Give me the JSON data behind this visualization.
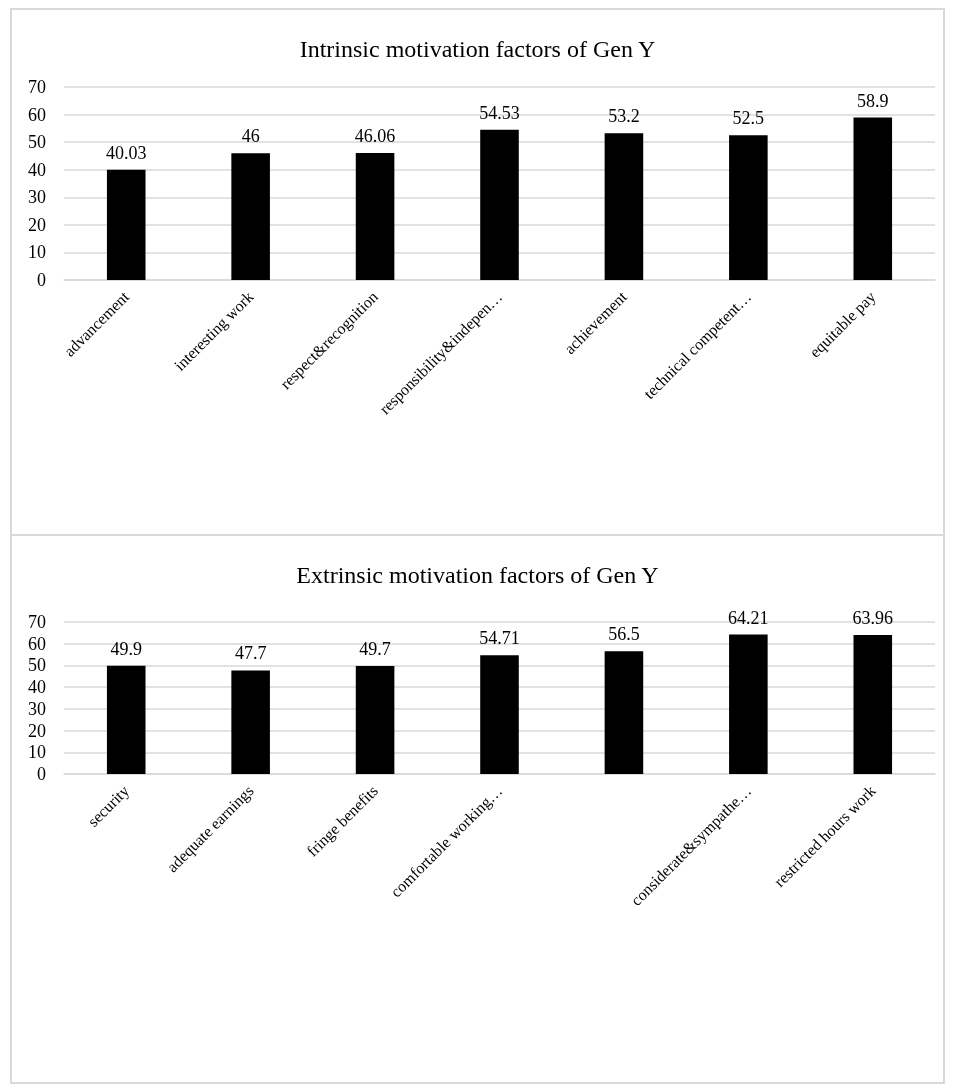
{
  "chart_data": [
    {
      "type": "bar",
      "title": "Intrinsic motivation factors of Gen Y",
      "categories": [
        "advancement",
        "interesting work",
        "respect&recognition",
        "responsibility&indepen…",
        "achievement",
        "technical competent…",
        "equitable pay"
      ],
      "values": [
        40.03,
        46,
        46.06,
        54.53,
        53.2,
        52.5,
        58.9
      ],
      "color": "#000000",
      "ylim": [
        0,
        70
      ],
      "yticks": [
        0,
        10,
        20,
        30,
        40,
        50,
        60,
        70
      ],
      "grid": "y",
      "data_labels": true
    },
    {
      "type": "bar",
      "title": "Extrinsic motivation factors of Gen Y",
      "categories": [
        "security",
        "adequate earnings",
        "fringe benefits",
        "comfortable working…",
        null,
        "considerate&sympathe…",
        "restricted hours work"
      ],
      "values": [
        49.9,
        47.7,
        49.7,
        54.71,
        56.5,
        64.21,
        63.96
      ],
      "color": "#000000",
      "ylim": [
        0,
        70
      ],
      "yticks": [
        0,
        10,
        20,
        30,
        40,
        50,
        60,
        70
      ],
      "grid": "y",
      "data_labels": true
    }
  ]
}
